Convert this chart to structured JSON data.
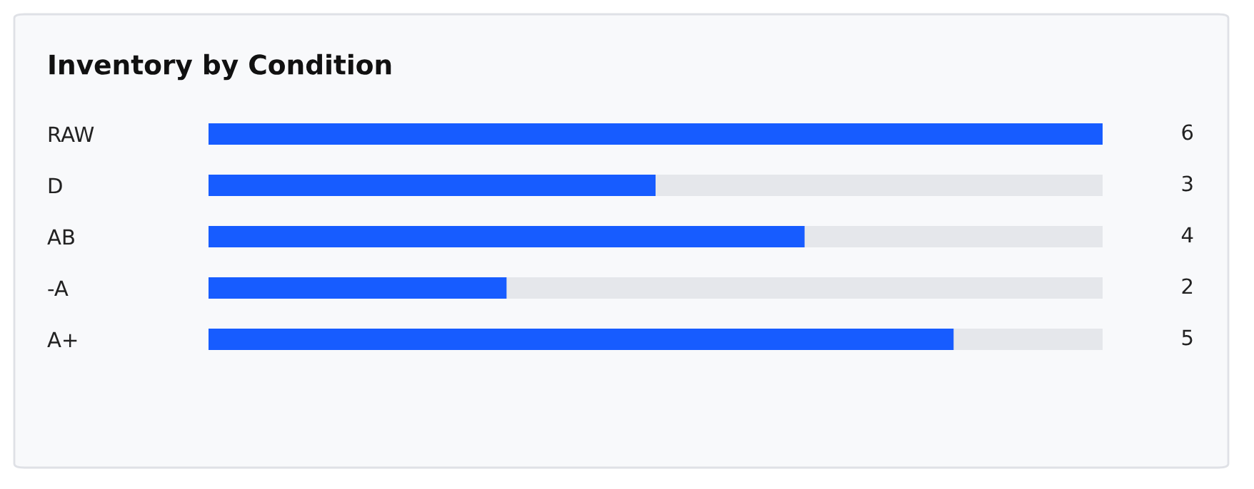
{
  "chart_data": {
    "type": "bar",
    "orientation": "horizontal",
    "title": "Inventory by Condition",
    "categories": [
      "RAW",
      "D",
      "AB",
      "-A",
      "A+"
    ],
    "values": [
      6,
      3,
      4,
      2,
      5
    ],
    "color": "#175cff",
    "xlim": [
      0,
      6
    ],
    "data_labels": true,
    "grid": false,
    "legend": false,
    "tick_labels": "y"
  }
}
